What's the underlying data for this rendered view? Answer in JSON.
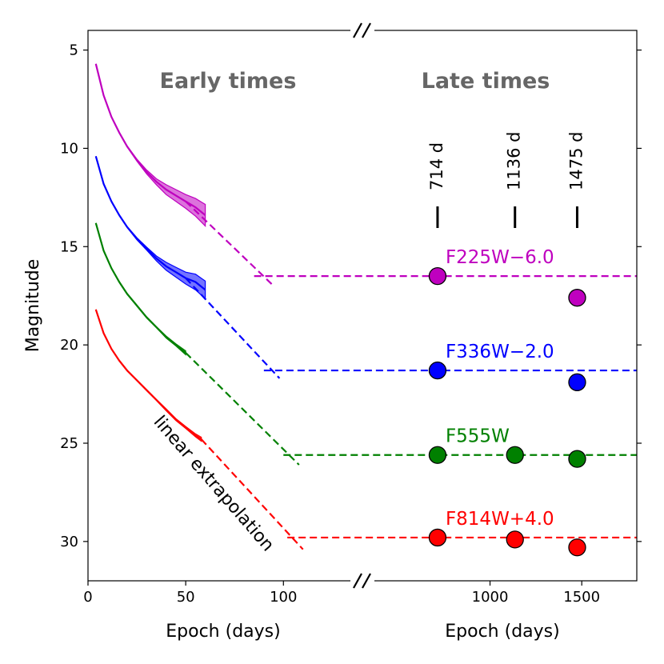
{
  "chart_data": {
    "type": "line",
    "ylabel": "Magnitude",
    "y_inverted": true,
    "ylim": [
      4,
      32
    ],
    "yticks": [
      5,
      10,
      15,
      20,
      25,
      30
    ],
    "broken_axis": true,
    "panels": {
      "early": {
        "title": "Early times",
        "xlabel": "Epoch (days)",
        "xlim": [
          0,
          140
        ],
        "xticks": [
          0,
          50,
          100
        ]
      },
      "late": {
        "title": "Late times",
        "xlabel": "Epoch (days)",
        "xlim": [
          300,
          1800
        ],
        "xticks": [
          1000,
          1500
        ]
      }
    },
    "epoch_markers": [
      {
        "label": "714 d",
        "x": 714
      },
      {
        "label": "1136 d",
        "x": 1136
      },
      {
        "label": "1475 d",
        "x": 1475
      }
    ],
    "annotation": "linear extrapolation",
    "series": [
      {
        "name": "F225W−6.0",
        "color": "#bf00bf",
        "curve": [
          [
            4,
            5.7
          ],
          [
            8,
            7.3
          ],
          [
            12,
            8.4
          ],
          [
            16,
            9.2
          ],
          [
            20,
            9.9
          ],
          [
            25,
            10.6
          ],
          [
            30,
            11.2
          ],
          [
            35,
            11.7
          ],
          [
            40,
            12.1
          ],
          [
            45,
            12.4
          ],
          [
            50,
            12.7
          ],
          [
            55,
            13.0
          ],
          [
            60,
            13.4
          ]
        ],
        "band_width": [
          0.0,
          0.0,
          0.0,
          0.0,
          0.05,
          0.1,
          0.2,
          0.3,
          0.5,
          0.6,
          0.7,
          0.9,
          1.1
        ],
        "extrapolation": [
          [
            50,
            12.7
          ],
          [
            95,
            17.0
          ]
        ],
        "late_level": 16.5,
        "late_points": [
          {
            "x": 714,
            "y": 16.5
          },
          {
            "x": 1475,
            "y": 17.6
          }
        ]
      },
      {
        "name": "F336W−2.0",
        "color": "#0000ff",
        "curve": [
          [
            4,
            10.4
          ],
          [
            8,
            11.8
          ],
          [
            12,
            12.7
          ],
          [
            16,
            13.4
          ],
          [
            20,
            14.0
          ],
          [
            25,
            14.6
          ],
          [
            30,
            15.1
          ],
          [
            35,
            15.6
          ],
          [
            40,
            16.0
          ],
          [
            45,
            16.3
          ],
          [
            50,
            16.6
          ],
          [
            55,
            16.8
          ],
          [
            60,
            17.2
          ]
        ],
        "band_width": [
          0.0,
          0.0,
          0.0,
          0.0,
          0.05,
          0.1,
          0.15,
          0.25,
          0.4,
          0.5,
          0.6,
          0.8,
          0.9
        ],
        "extrapolation": [
          [
            50,
            16.6
          ],
          [
            98,
            21.7
          ]
        ],
        "late_level": 21.3,
        "late_points": [
          {
            "x": 714,
            "y": 21.3
          },
          {
            "x": 1475,
            "y": 21.9
          }
        ]
      },
      {
        "name": "F555W",
        "color": "#008000",
        "curve": [
          [
            4,
            13.8
          ],
          [
            8,
            15.2
          ],
          [
            12,
            16.1
          ],
          [
            16,
            16.8
          ],
          [
            20,
            17.4
          ],
          [
            25,
            18.0
          ],
          [
            30,
            18.6
          ],
          [
            35,
            19.1
          ],
          [
            40,
            19.6
          ],
          [
            45,
            20.0
          ],
          [
            50,
            20.4
          ]
        ],
        "band_width": [
          0.0,
          0.0,
          0.0,
          0.05,
          0.05,
          0.05,
          0.05,
          0.05,
          0.1,
          0.1,
          0.2
        ],
        "extrapolation": [
          [
            50,
            20.4
          ],
          [
            108,
            26.1
          ]
        ],
        "late_level": 25.6,
        "late_points": [
          {
            "x": 714,
            "y": 25.6
          },
          {
            "x": 1136,
            "y": 25.6
          },
          {
            "x": 1475,
            "y": 25.8
          }
        ]
      },
      {
        "name": "F814W+4.0",
        "color": "#ff0000",
        "curve": [
          [
            4,
            18.2
          ],
          [
            8,
            19.4
          ],
          [
            12,
            20.2
          ],
          [
            16,
            20.8
          ],
          [
            20,
            21.3
          ],
          [
            25,
            21.8
          ],
          [
            30,
            22.3
          ],
          [
            35,
            22.8
          ],
          [
            40,
            23.3
          ],
          [
            45,
            23.8
          ],
          [
            50,
            24.2
          ],
          [
            55,
            24.6
          ],
          [
            58,
            24.8
          ]
        ],
        "band_width": [
          0.0,
          0.0,
          0.0,
          0.05,
          0.05,
          0.05,
          0.05,
          0.05,
          0.1,
          0.1,
          0.1,
          0.15,
          0.2
        ],
        "extrapolation": [
          [
            58,
            24.8
          ],
          [
            110,
            30.4
          ]
        ],
        "late_level": 29.8,
        "late_points": [
          {
            "x": 714,
            "y": 29.8
          },
          {
            "x": 1136,
            "y": 29.9
          },
          {
            "x": 1475,
            "y": 30.3
          }
        ]
      }
    ]
  }
}
